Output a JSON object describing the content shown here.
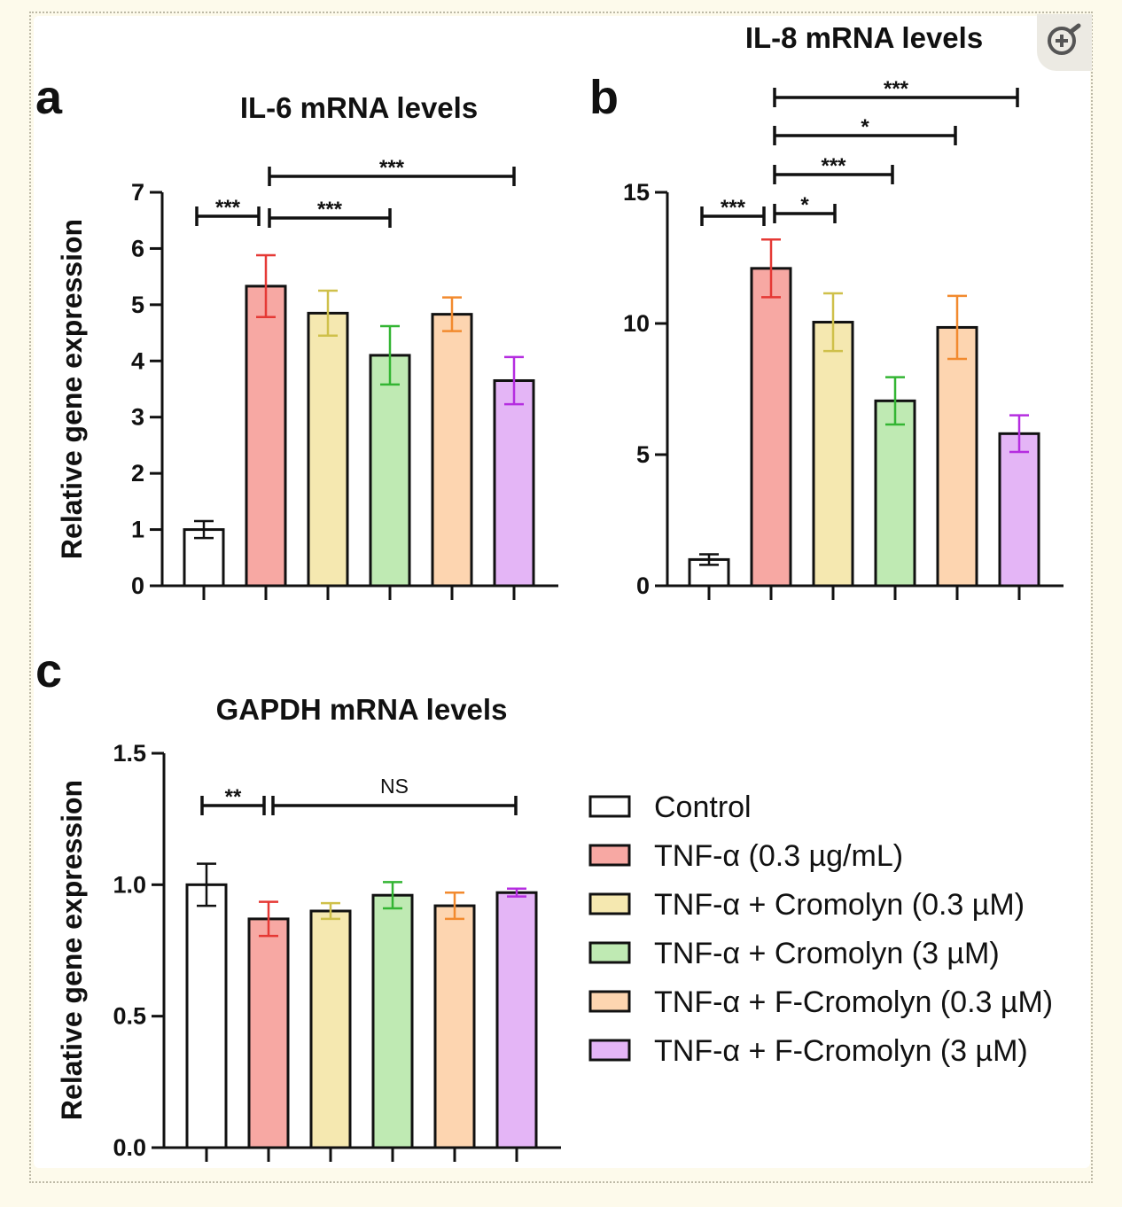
{
  "ui": {
    "zoom_button_icon": "zoom-in-icon"
  },
  "groups": [
    {
      "label": "Control",
      "fill": "#ffffff",
      "edge": "#111111"
    },
    {
      "label": "TNF-α (0.3 µg/mL)",
      "fill": "#f7a8a3",
      "edge": "#e53935"
    },
    {
      "label": "TNF-α + Cromolyn (0.3 µM)",
      "fill": "#f5e8b0",
      "edge": "#cfc04a"
    },
    {
      "label": "TNF-α + Cromolyn (3 µM)",
      "fill": "#bfeab3",
      "edge": "#33b533"
    },
    {
      "label": "TNF-α + F-Cromolyn (0.3 µM)",
      "fill": "#fdd5b0",
      "edge": "#f28a2e"
    },
    {
      "label": "TNF-α + F-Cromolyn (3 µM)",
      "fill": "#e4b5f6",
      "edge": "#b52de0"
    }
  ],
  "chart_data": [
    {
      "panel": "a",
      "type": "bar",
      "title": "IL-6 mRNA levels",
      "ylabel": "Relative gene expression",
      "ylim": [
        0,
        7
      ],
      "yticks": [
        "0",
        "1",
        "2",
        "3",
        "4",
        "5",
        "6",
        "7"
      ],
      "values": [
        1.0,
        5.33,
        4.85,
        4.1,
        4.83,
        3.65
      ],
      "errors": [
        0.15,
        0.55,
        0.4,
        0.52,
        0.3,
        0.42
      ],
      "significance": [
        {
          "from": 0,
          "to": 1,
          "label": "***"
        },
        {
          "from": 1,
          "to": 3,
          "label": "***"
        },
        {
          "from": 1,
          "to": 5,
          "label": "***"
        }
      ]
    },
    {
      "panel": "b",
      "type": "bar",
      "title": "IL-8 mRNA levels",
      "ylabel": "",
      "ylim": [
        0,
        15
      ],
      "yticks": [
        "0",
        "5",
        "10",
        "15"
      ],
      "values": [
        1.0,
        12.1,
        10.05,
        7.05,
        9.85,
        5.8
      ],
      "errors": [
        0.2,
        1.1,
        1.1,
        0.9,
        1.2,
        0.7
      ],
      "significance": [
        {
          "from": 0,
          "to": 1,
          "label": "***"
        },
        {
          "from": 1,
          "to": 2,
          "label": "*"
        },
        {
          "from": 1,
          "to": 3,
          "label": "***"
        },
        {
          "from": 1,
          "to": 4,
          "label": "*"
        },
        {
          "from": 1,
          "to": 5,
          "label": "***"
        }
      ]
    },
    {
      "panel": "c",
      "type": "bar",
      "title": "GAPDH mRNA levels",
      "ylabel": "Relative gene expression",
      "ylim": [
        0,
        1.5
      ],
      "yticks": [
        "0.0",
        "0.5",
        "1.0",
        "1.5"
      ],
      "values": [
        1.0,
        0.87,
        0.9,
        0.96,
        0.92,
        0.97
      ],
      "errors": [
        0.08,
        0.065,
        0.03,
        0.05,
        0.05,
        0.015
      ],
      "significance": [
        {
          "from": 0,
          "to": 1,
          "label": "**"
        },
        {
          "from": 1,
          "to": 5,
          "label": "NS"
        }
      ]
    }
  ]
}
